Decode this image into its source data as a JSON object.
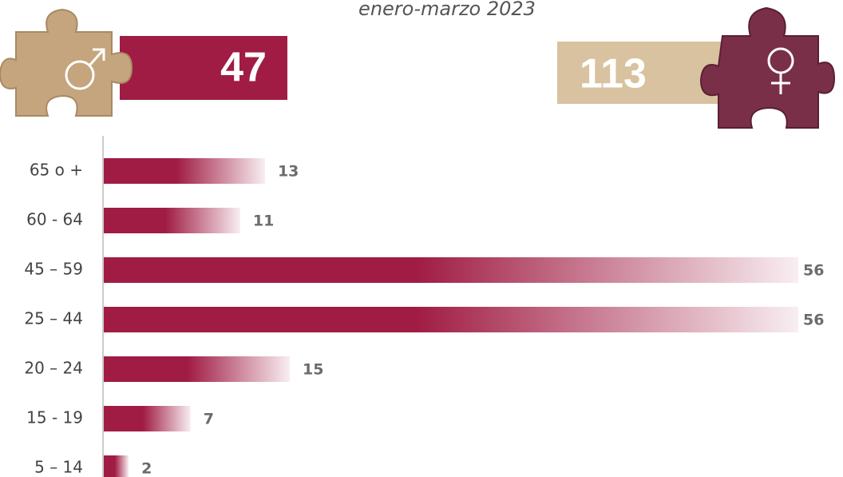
{
  "header": {
    "subtitle": "enero-marzo 2023",
    "male_total": 47,
    "female_total": 113
  },
  "chart_data": {
    "type": "bar",
    "orientation": "horizontal",
    "color": "#a01c44",
    "categories": [
      "65 o +",
      "60 - 64",
      "45 – 59",
      "25 – 44",
      "20 – 24",
      "15 - 19",
      "5 – 14"
    ],
    "values": [
      13,
      11,
      56,
      56,
      15,
      7,
      2
    ]
  }
}
